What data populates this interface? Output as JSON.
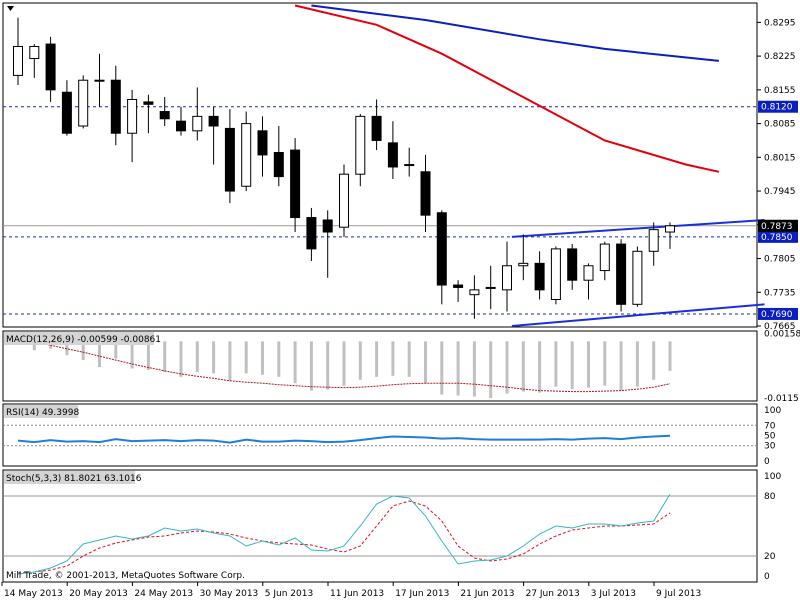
{
  "header": {
    "copyright": "Mill Trade, © 2001-2013, MetaQuotes Software Corp."
  },
  "colors": {
    "background": "#ffffff",
    "bull_fill": "#ffffff",
    "bear_fill": "#000000",
    "ma_fast": "#e3000b",
    "ma_slow": "#0b1fbf",
    "channel": "#1b2fd9",
    "level_line": "#1a2aa8",
    "macd_hist": "#c0c0c0",
    "macd_signal": "#b01818",
    "rsi_line": "#1e7fd8",
    "stoch_main": "#35b5c9",
    "stoch_signal": "#d81818",
    "price_line": "#9a9a9a",
    "label_dark": "#000000",
    "label_blue": "#0b1fbf"
  },
  "chart_data": [
    {
      "name": "price",
      "type": "candlestick",
      "ylim": [
        0.7665,
        0.8329
      ],
      "y_ticks": [
        "0.8295",
        "0.8225",
        "0.8155",
        "0.8085",
        "0.8015",
        "0.7945",
        "0.7875",
        "0.7805",
        "0.7735",
        "0.7665"
      ],
      "x_labels": [
        "14 May 2013",
        "20 May 2013",
        "24 May 2013",
        "30 May 2013",
        "5 Jun 2013",
        "11 Jun 2013",
        "17 Jun 2013",
        "21 Jun 2013",
        "27 Jun 2013",
        "3 Jul 2013",
        "9 Jul 2013"
      ],
      "candles": [
        {
          "o": 0.8185,
          "h": 0.8305,
          "l": 0.8165,
          "c": 0.8245
        },
        {
          "o": 0.822,
          "h": 0.825,
          "l": 0.818,
          "c": 0.8245
        },
        {
          "o": 0.825,
          "h": 0.8265,
          "l": 0.813,
          "c": 0.8155
        },
        {
          "o": 0.815,
          "h": 0.8175,
          "l": 0.806,
          "c": 0.8065
        },
        {
          "o": 0.808,
          "h": 0.8185,
          "l": 0.8075,
          "c": 0.8175
        },
        {
          "o": 0.8175,
          "h": 0.823,
          "l": 0.812,
          "c": 0.8175
        },
        {
          "o": 0.8175,
          "h": 0.8205,
          "l": 0.804,
          "c": 0.8065
        },
        {
          "o": 0.8065,
          "h": 0.8155,
          "l": 0.8005,
          "c": 0.8135
        },
        {
          "o": 0.813,
          "h": 0.8145,
          "l": 0.8065,
          "c": 0.8125
        },
        {
          "o": 0.811,
          "h": 0.814,
          "l": 0.808,
          "c": 0.8095
        },
        {
          "o": 0.809,
          "h": 0.812,
          "l": 0.806,
          "c": 0.807
        },
        {
          "o": 0.807,
          "h": 0.816,
          "l": 0.805,
          "c": 0.81
        },
        {
          "o": 0.81,
          "h": 0.812,
          "l": 0.8,
          "c": 0.808
        },
        {
          "o": 0.8075,
          "h": 0.8115,
          "l": 0.792,
          "c": 0.7945
        },
        {
          "o": 0.7955,
          "h": 0.811,
          "l": 0.7945,
          "c": 0.8085
        },
        {
          "o": 0.807,
          "h": 0.81,
          "l": 0.7975,
          "c": 0.802
        },
        {
          "o": 0.8025,
          "h": 0.808,
          "l": 0.7955,
          "c": 0.7975
        },
        {
          "o": 0.803,
          "h": 0.8055,
          "l": 0.786,
          "c": 0.789
        },
        {
          "o": 0.789,
          "h": 0.791,
          "l": 0.78,
          "c": 0.7825
        },
        {
          "o": 0.7885,
          "h": 0.7905,
          "l": 0.7765,
          "c": 0.786
        },
        {
          "o": 0.787,
          "h": 0.8,
          "l": 0.785,
          "c": 0.798
        },
        {
          "o": 0.798,
          "h": 0.8105,
          "l": 0.7955,
          "c": 0.81
        },
        {
          "o": 0.81,
          "h": 0.8135,
          "l": 0.803,
          "c": 0.805
        },
        {
          "o": 0.8045,
          "h": 0.809,
          "l": 0.797,
          "c": 0.7995
        },
        {
          "o": 0.8,
          "h": 0.8035,
          "l": 0.7975,
          "c": 0.8
        },
        {
          "o": 0.7985,
          "h": 0.802,
          "l": 0.786,
          "c": 0.7895
        },
        {
          "o": 0.79,
          "h": 0.7905,
          "l": 0.771,
          "c": 0.775
        },
        {
          "o": 0.775,
          "h": 0.776,
          "l": 0.7715,
          "c": 0.7745
        },
        {
          "o": 0.773,
          "h": 0.777,
          "l": 0.768,
          "c": 0.774
        },
        {
          "o": 0.7745,
          "h": 0.779,
          "l": 0.77,
          "c": 0.7745
        },
        {
          "o": 0.774,
          "h": 0.784,
          "l": 0.7695,
          "c": 0.779
        },
        {
          "o": 0.779,
          "h": 0.7855,
          "l": 0.776,
          "c": 0.7795
        },
        {
          "o": 0.7795,
          "h": 0.782,
          "l": 0.772,
          "c": 0.774
        },
        {
          "o": 0.772,
          "h": 0.783,
          "l": 0.771,
          "c": 0.7825
        },
        {
          "o": 0.7825,
          "h": 0.7835,
          "l": 0.774,
          "c": 0.776
        },
        {
          "o": 0.776,
          "h": 0.7795,
          "l": 0.772,
          "c": 0.779
        },
        {
          "o": 0.778,
          "h": 0.784,
          "l": 0.776,
          "c": 0.7835
        },
        {
          "o": 0.7835,
          "h": 0.7845,
          "l": 0.7695,
          "c": 0.771
        },
        {
          "o": 0.771,
          "h": 0.783,
          "l": 0.7705,
          "c": 0.782
        },
        {
          "o": 0.782,
          "h": 0.788,
          "l": 0.779,
          "c": 0.7865
        },
        {
          "o": 0.786,
          "h": 0.788,
          "l": 0.7825,
          "c": 0.7873
        }
      ],
      "ma_fast": [
        [
          0.833,
          17
        ],
        [
          0.829,
          22
        ],
        [
          0.823,
          26
        ],
        [
          0.814,
          31
        ],
        [
          0.805,
          36
        ],
        [
          0.8,
          41
        ],
        [
          0.7985,
          43
        ]
      ],
      "ma_slow": [
        [
          0.833,
          18
        ],
        [
          0.83,
          25
        ],
        [
          0.826,
          32
        ],
        [
          0.824,
          36
        ],
        [
          0.8215,
          43
        ]
      ],
      "channel_upper": [
        [
          0.785,
          30.3
        ],
        [
          0.7885,
          45.8
        ]
      ],
      "channel_lower": [
        [
          0.7665,
          30.3
        ],
        [
          0.771,
          45.8
        ]
      ],
      "levels": [
        {
          "value": 0.812,
          "label": "0.8120"
        },
        {
          "value": 0.785,
          "label": "0.7850"
        },
        {
          "value": 0.769,
          "label": "0.7690"
        }
      ],
      "current_price": {
        "value": 0.7873,
        "label": "0.7873"
      }
    },
    {
      "name": "macd",
      "type": "bar",
      "title": "MACD(12,26,9) -0.00599 -0.00861",
      "ylim": [
        -0.0115,
        0.0015
      ],
      "y_ticks": [
        "0.00158",
        "-0.0115"
      ],
      "histogram": [
        0.0005,
        -0.0018,
        -0.0015,
        -0.0028,
        -0.0038,
        -0.0052,
        -0.0035,
        -0.0055,
        -0.0058,
        -0.0062,
        -0.0072,
        -0.0062,
        -0.0065,
        -0.008,
        -0.0065,
        -0.0068,
        -0.0072,
        -0.0085,
        -0.01,
        -0.0098,
        -0.009,
        -0.0078,
        -0.0072,
        -0.007,
        -0.0072,
        -0.0085,
        -0.0108,
        -0.011,
        -0.0112,
        -0.0115,
        -0.0106,
        -0.0102,
        -0.0104,
        -0.0092,
        -0.0097,
        -0.0094,
        -0.009,
        -0.01,
        -0.0092,
        -0.0078,
        -0.006
      ],
      "signal": [
        0.0005,
        0.0,
        -0.0008,
        -0.0015,
        -0.0022,
        -0.003,
        -0.0038,
        -0.0046,
        -0.0053,
        -0.006,
        -0.0066,
        -0.0071,
        -0.0075,
        -0.008,
        -0.0083,
        -0.0085,
        -0.0088,
        -0.009,
        -0.0092,
        -0.0093,
        -0.0094,
        -0.0093,
        -0.0091,
        -0.0088,
        -0.0086,
        -0.0085,
        -0.0085,
        -0.0085,
        -0.0087,
        -0.009,
        -0.0093,
        -0.0097,
        -0.01,
        -0.0101,
        -0.0102,
        -0.0102,
        -0.0101,
        -0.01,
        -0.0097,
        -0.0093,
        -0.0086
      ]
    },
    {
      "name": "rsi",
      "type": "line",
      "title": "RSI(14) 49.3998",
      "ylim": [
        0,
        100
      ],
      "y_ticks": [
        100,
        70,
        50,
        30,
        0
      ],
      "levels": [
        70,
        30
      ],
      "values": [
        40,
        37,
        41,
        38,
        39,
        37,
        43,
        39,
        40,
        41,
        39,
        41,
        40,
        36,
        42,
        38,
        38,
        40,
        39,
        37,
        38,
        41,
        45,
        48,
        47,
        46,
        44,
        45,
        43,
        42,
        42,
        42,
        42,
        43,
        42,
        44,
        45,
        43,
        46,
        48,
        49.4
      ]
    },
    {
      "name": "stochastic",
      "type": "line",
      "title": "Stoch(5,3,3) 81.8021 63.1016",
      "ylim": [
        0,
        100
      ],
      "y_ticks": [
        100,
        80,
        20,
        0
      ],
      "levels": [
        80,
        20
      ],
      "main": [
        2,
        4,
        8,
        15,
        32,
        36,
        40,
        37,
        40,
        48,
        45,
        47,
        43,
        40,
        30,
        35,
        31,
        38,
        26,
        25,
        30,
        50,
        72,
        80,
        78,
        60,
        35,
        12,
        15,
        16,
        20,
        30,
        42,
        50,
        48,
        52,
        52,
        50,
        53,
        55,
        81.8
      ],
      "signal": [
        3,
        4,
        6,
        10,
        20,
        28,
        33,
        36,
        39,
        40,
        43,
        45,
        44,
        42,
        38,
        35,
        33,
        32,
        31,
        27,
        24,
        30,
        50,
        70,
        75,
        70,
        55,
        30,
        18,
        15,
        17,
        22,
        32,
        40,
        46,
        48,
        50,
        50,
        51,
        52,
        63.1
      ]
    }
  ]
}
